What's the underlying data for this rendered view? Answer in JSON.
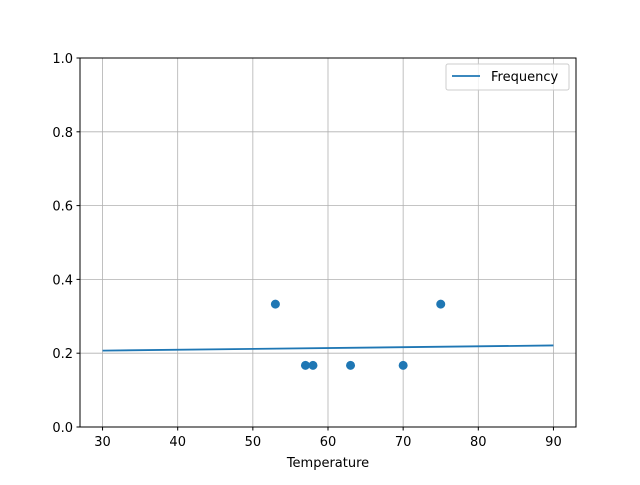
{
  "chart_data": {
    "type": "scatter",
    "title": "",
    "xlabel": "Temperature",
    "ylabel": "",
    "xlim": [
      27,
      93
    ],
    "ylim": [
      0,
      1
    ],
    "xticks": [
      30,
      40,
      50,
      60,
      70,
      80,
      90
    ],
    "yticks": [
      0.0,
      0.2,
      0.4,
      0.6,
      0.8,
      1.0
    ],
    "ytick_labels": [
      "0.0",
      "0.2",
      "0.4",
      "0.6",
      "0.8",
      "1.0"
    ],
    "grid": true,
    "legend": {
      "placement": "top-right",
      "entries": [
        "Frequency"
      ]
    },
    "scatter": {
      "x": [
        53,
        57,
        58,
        63,
        70,
        75
      ],
      "y": [
        0.333,
        0.167,
        0.167,
        0.167,
        0.167,
        0.333
      ],
      "color": "#1f77b4"
    },
    "line": {
      "name": "Frequency",
      "x": [
        30,
        90
      ],
      "y": [
        0.207,
        0.221
      ],
      "color": "#1f77b4"
    }
  }
}
